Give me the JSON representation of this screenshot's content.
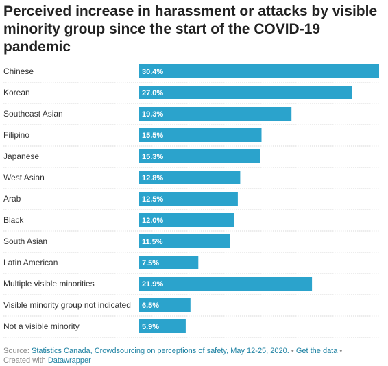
{
  "header": {
    "title": "Perceived increase in harassment or attacks by visible minority group since the start of the COVID-19 pandemic"
  },
  "chart_data": {
    "type": "bar",
    "orientation": "horizontal",
    "title": "Perceived increase in harassment or attacks by visible minority group since the start of the COVID-19 pandemic",
    "categories": [
      "Chinese",
      "Korean",
      "Southeast Asian",
      "Filipino",
      "Japanese",
      "West Asian",
      "Arab",
      "Black",
      "South Asian",
      "Latin American",
      "Multiple visible minorities",
      "Visible minority group not indicated",
      "Not a visible minority"
    ],
    "values": [
      30.4,
      27.0,
      19.3,
      15.5,
      15.3,
      12.8,
      12.5,
      12.0,
      11.5,
      7.5,
      21.9,
      6.5,
      5.9
    ],
    "value_labels": [
      "30.4%",
      "27.0%",
      "19.3%",
      "15.5%",
      "15.3%",
      "12.8%",
      "12.5%",
      "12.0%",
      "11.5%",
      "7.5%",
      "21.9%",
      "6.5%",
      "5.9%"
    ],
    "unit": "%",
    "xlim": [
      0,
      30.4
    ],
    "bar_color": "#2ba3cc",
    "grid": false,
    "legend": "none"
  },
  "footer": {
    "source_prefix": "Source:",
    "source_link": "Statistics Canada, Crowdsourcing on perceptions of safety, May 12-25, 2020.",
    "separator1": "•",
    "get_data": "Get the data",
    "separator2": "•",
    "created_prefix": "Created with",
    "created_link": "Datawrapper"
  }
}
